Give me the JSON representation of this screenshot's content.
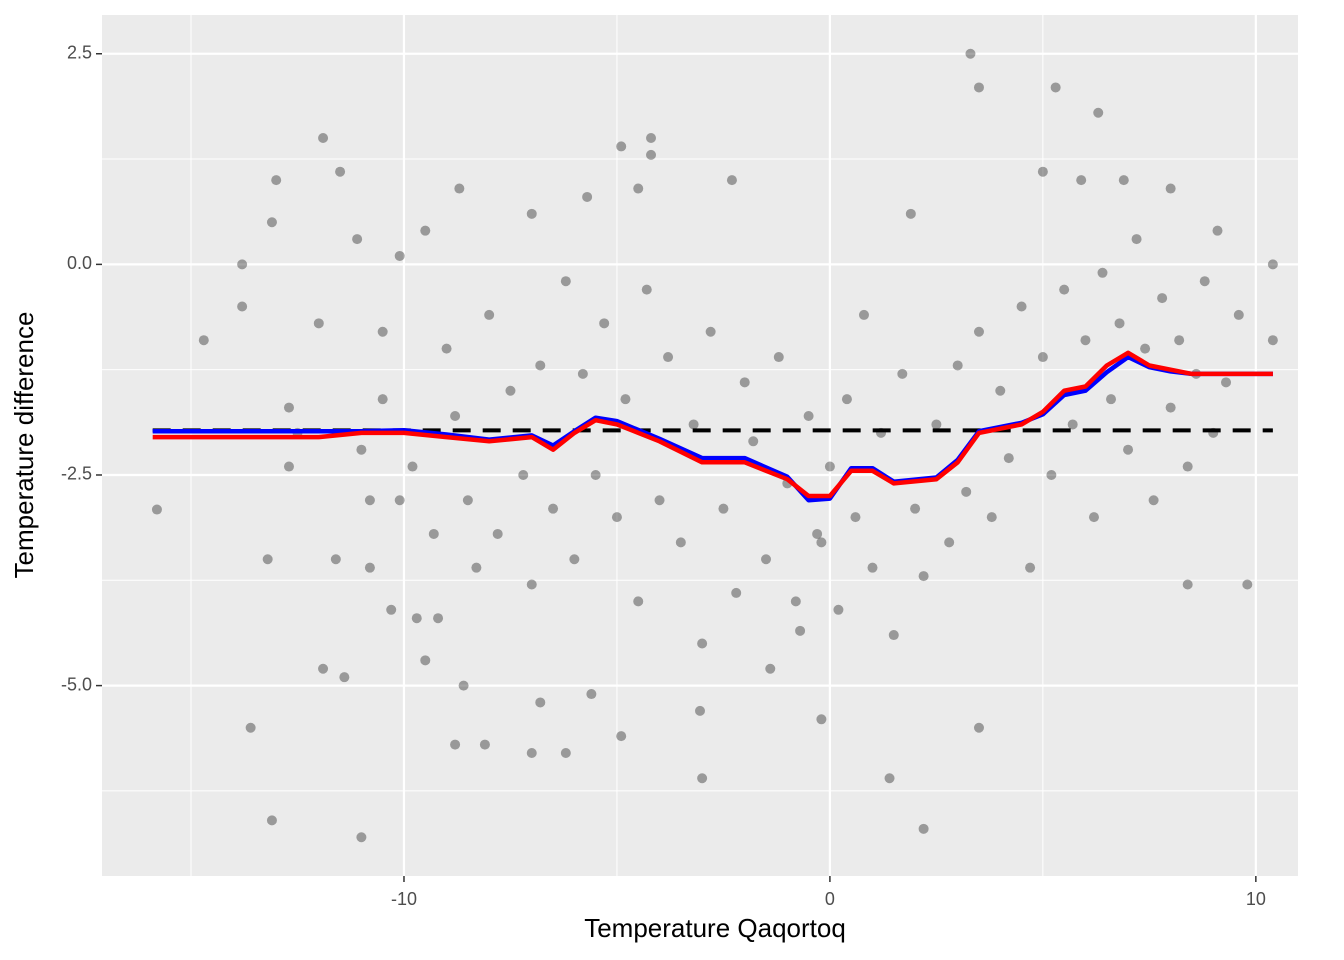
{
  "chart_data": {
    "type": "scatter",
    "xlabel": "Temperature Qaqortoq",
    "ylabel": "Temperature difference",
    "xlim": [
      -17.09,
      10.99
    ],
    "ylim": [
      -7.26,
      2.96
    ],
    "xticks": [
      -10,
      0,
      10
    ],
    "yticks": [
      2.5,
      {
        "value": 0,
        "label": "0.0"
      },
      -2.5,
      {
        "value": -5,
        "label": "-5.0"
      }
    ],
    "x_minor_grid": [
      -15,
      -5,
      5
    ],
    "y_minor_grid": [
      1.25,
      -1.25,
      -3.75,
      -6.25
    ],
    "grid": true,
    "points": {
      "color": "#000000",
      "opacity": 0.35,
      "x": [
        -15.8,
        -14.7,
        -13.8,
        -13.8,
        -13.6,
        -13.2,
        -13.1,
        -13.0,
        -13.1,
        -12.7,
        -12.7,
        -12.0,
        -11.9,
        -11.9,
        -11.6,
        -11.5,
        -11.4,
        -11.1,
        -11.0,
        -10.8,
        -10.8,
        -10.5,
        -10.3,
        -10.1,
        -10.1,
        -9.7,
        -9.5,
        -9.5,
        -9.2,
        -8.8,
        -8.7,
        -8.6,
        -8.1,
        -7.0,
        -7.0,
        -6.8,
        -6.2,
        -5.7,
        -4.9,
        -4.9,
        -4.2,
        -4.2,
        -4.5,
        -3.0,
        -2.3,
        1.9,
        3.3,
        3.5,
        5.3,
        6.3,
        1.4,
        2.2,
        3.5,
        9.8,
        10.4,
        10.4,
        8.4,
        8.0,
        9.1,
        5.9,
        6.9,
        5.0,
        -0.2,
        -0.7,
        -0.2,
        -1.4,
        -3.05,
        -5.6,
        -9.0,
        -8.5,
        -8.0,
        -7.8,
        -7.5,
        -7.2,
        -7.0,
        -6.8,
        -6.5,
        -6.2,
        -6.0,
        -5.8,
        -5.5,
        -5.3,
        -5.0,
        -4.8,
        -4.5,
        -4.3,
        -4.0,
        -3.8,
        -3.5,
        -3.2,
        -3.0,
        -2.8,
        -2.5,
        -2.2,
        -2.0,
        -1.8,
        -1.5,
        -1.2,
        -1.0,
        -0.8,
        -0.5,
        -0.3,
        0.0,
        0.2,
        0.4,
        0.6,
        0.8,
        1.0,
        1.2,
        1.5,
        1.7,
        2.0,
        2.2,
        2.5,
        2.8,
        3.0,
        3.2,
        3.5,
        3.8,
        4.0,
        4.2,
        4.5,
        4.7,
        5.0,
        5.2,
        5.5,
        5.7,
        6.0,
        6.2,
        6.4,
        6.6,
        6.8,
        7.0,
        7.2,
        7.4,
        7.6,
        7.8,
        8.0,
        8.2,
        8.4,
        8.6,
        8.8,
        9.0,
        9.3,
        9.6,
        -10.5,
        -9.8,
        -9.3,
        -8.8,
        -8.3,
        -11.0,
        -12.5
      ],
      "y": [
        -2.91,
        -0.9,
        0.0,
        -0.5,
        -5.5,
        -3.5,
        0.5,
        1.0,
        -6.6,
        -1.7,
        -2.4,
        -0.7,
        1.5,
        -4.8,
        -3.5,
        1.1,
        -4.9,
        0.3,
        -6.8,
        -3.6,
        -2.8,
        -0.8,
        -4.1,
        0.1,
        -2.8,
        -4.2,
        0.4,
        -4.7,
        -4.2,
        -5.7,
        0.9,
        -5.0,
        -5.7,
        -5.8,
        0.6,
        -5.2,
        -5.8,
        0.8,
        1.4,
        -5.6,
        1.5,
        1.3,
        0.9,
        -6.1,
        1.0,
        0.6,
        2.5,
        2.1,
        2.1,
        1.8,
        -6.1,
        -6.7,
        -5.5,
        -3.8,
        0.0,
        -0.9,
        -3.8,
        0.9,
        0.4,
        1.0,
        1.0,
        1.1,
        -5.4,
        -4.35,
        -3.3,
        -4.8,
        -5.3,
        -5.1,
        -1.0,
        -2.8,
        -0.6,
        -3.2,
        -1.5,
        -2.5,
        -3.8,
        -1.2,
        -2.9,
        -0.2,
        -3.5,
        -1.3,
        -2.5,
        -0.7,
        -3.0,
        -1.6,
        -4.0,
        -0.3,
        -2.8,
        -1.1,
        -3.3,
        -1.9,
        -4.5,
        -0.8,
        -2.9,
        -3.9,
        -1.4,
        -2.1,
        -3.5,
        -1.1,
        -2.6,
        -4.0,
        -1.8,
        -3.2,
        -2.4,
        -4.1,
        -1.6,
        -3.0,
        -0.6,
        -3.6,
        -2.0,
        -4.4,
        -1.3,
        -2.9,
        -3.7,
        -1.9,
        -3.3,
        -1.2,
        -2.7,
        -0.8,
        -3.0,
        -1.5,
        -2.3,
        -0.5,
        -3.6,
        -1.1,
        -2.5,
        -0.3,
        -1.9,
        -0.9,
        -3.0,
        -0.1,
        -1.6,
        -0.7,
        -2.2,
        0.3,
        -1.0,
        -2.8,
        -0.4,
        -1.7,
        -0.9,
        -2.4,
        -1.3,
        -0.2,
        -2.0,
        -1.4,
        -0.6,
        -1.6,
        -2.4,
        -3.2,
        -1.8,
        -3.6,
        -2.2,
        -2.0
      ]
    },
    "hline": {
      "value": -1.97,
      "x": [
        -15.9,
        10.4
      ],
      "color": "#000000",
      "dash": true
    },
    "lines": [
      {
        "color": "#0000ff",
        "x": [
          -15.9,
          -12,
          -11,
          -10,
          -9,
          -8,
          -7,
          -6.5,
          -6,
          -5.5,
          -5,
          -4,
          -3,
          -2,
          -1,
          -0.5,
          0,
          0.5,
          1,
          1.5,
          2.5,
          3,
          3.5,
          4.5,
          5,
          5.5,
          6,
          6.5,
          7,
          7.5,
          8,
          8.5,
          10.4
        ],
        "values": [
          -1.98,
          -1.98,
          -1.98,
          -1.97,
          -2.02,
          -2.08,
          -2.03,
          -2.15,
          -1.98,
          -1.82,
          -1.86,
          -2.07,
          -2.3,
          -2.3,
          -2.52,
          -2.8,
          -2.78,
          -2.42,
          -2.42,
          -2.58,
          -2.53,
          -2.32,
          -1.98,
          -1.88,
          -1.78,
          -1.55,
          -1.5,
          -1.28,
          -1.1,
          -1.22,
          -1.27,
          -1.3,
          -1.3
        ]
      },
      {
        "color": "#ff0000",
        "x": [
          -15.9,
          -12,
          -11,
          -10,
          -9,
          -8,
          -7,
          -6.5,
          -6,
          -5.5,
          -5,
          -4,
          -3,
          -2,
          -1,
          -0.5,
          0,
          0.5,
          1,
          1.5,
          2.5,
          3,
          3.5,
          4.5,
          5,
          5.5,
          6,
          6.5,
          7,
          7.5,
          8,
          8.5,
          10.4
        ],
        "values": [
          -2.05,
          -2.05,
          -2.0,
          -2.0,
          -2.05,
          -2.1,
          -2.05,
          -2.2,
          -2.0,
          -1.85,
          -1.9,
          -2.1,
          -2.35,
          -2.35,
          -2.55,
          -2.75,
          -2.75,
          -2.45,
          -2.45,
          -2.6,
          -2.55,
          -2.35,
          -2.0,
          -1.9,
          -1.75,
          -1.5,
          -1.45,
          -1.2,
          -1.05,
          -1.2,
          -1.25,
          -1.3,
          -1.3
        ]
      }
    ]
  }
}
